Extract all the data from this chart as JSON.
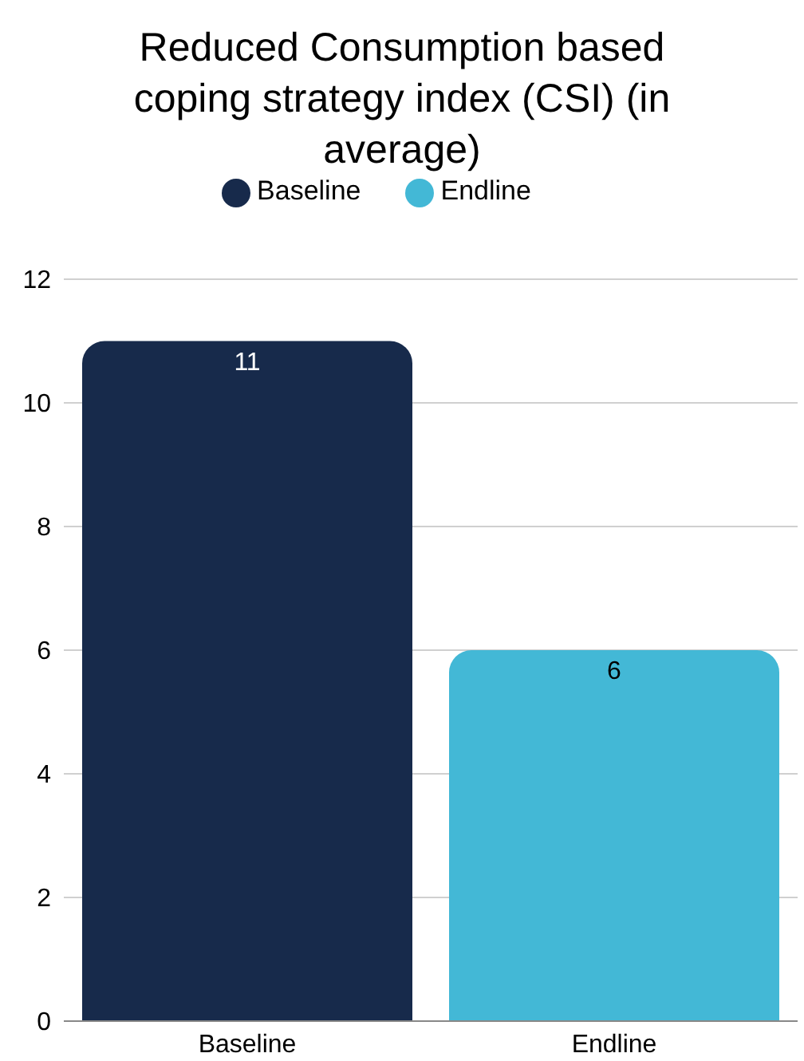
{
  "chart_data": {
    "type": "bar",
    "title": "Reduced Consumption based coping strategy index (CSI) (in average)",
    "categories": [
      "Baseline",
      "Endline"
    ],
    "series": [
      {
        "name": "Baseline",
        "color": "#172a4b",
        "values": [
          11,
          null
        ]
      },
      {
        "name": "Endline",
        "color": "#43b8d6",
        "values": [
          null,
          6
        ]
      }
    ],
    "stacked": true,
    "ylim": [
      0,
      12
    ],
    "yticks": [
      0,
      2,
      4,
      6,
      8,
      10,
      12
    ],
    "grid": "y",
    "legend": "top",
    "data_labels": true
  }
}
